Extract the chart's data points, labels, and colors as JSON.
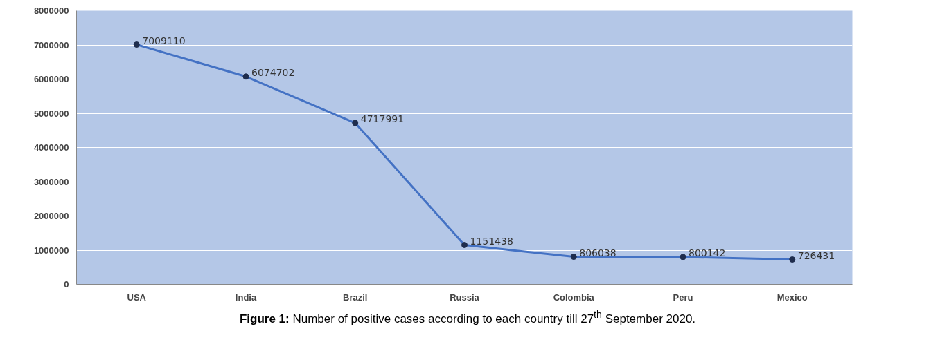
{
  "chart_data": {
    "type": "line",
    "categories": [
      "USA",
      "India",
      "Brazil",
      "Russia",
      "Colombia",
      "Peru",
      "Mexico"
    ],
    "series": [
      {
        "color": "#4472c4",
        "values": [
          7009110,
          6074702,
          4717991,
          1151438,
          806038,
          800142,
          726431
        ]
      }
    ],
    "ylim": [
      0,
      8000000
    ],
    "yticks": [
      0,
      1000000,
      2000000,
      3000000,
      4000000,
      5000000,
      6000000,
      7000000,
      8000000
    ],
    "grid": "y",
    "marker": "circle",
    "line_style": "solid",
    "data_labels": true,
    "annotations": [
      "Figure 1: Number of positive cases according to each country till 27$^{th}$ September 2020."
    ]
  }
}
